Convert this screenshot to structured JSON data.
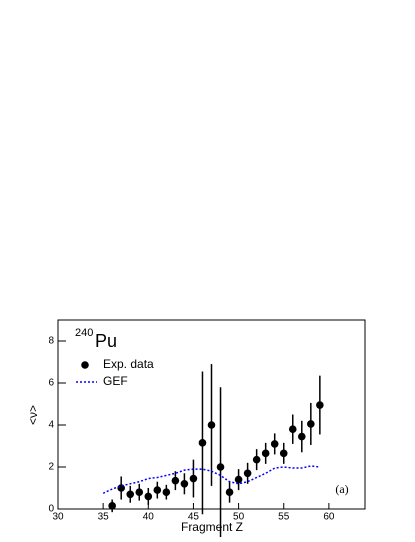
{
  "chart_data": {
    "type": "scatter",
    "title_sup": "240",
    "title": "Pu",
    "x_label": "Fragment Z",
    "y_label": "<ν>",
    "annotation": "(a)",
    "xlim": [
      30,
      64
    ],
    "ylim": [
      0,
      9
    ],
    "xticks": [
      30,
      35,
      40,
      45,
      50,
      55,
      60
    ],
    "yticks": [
      0,
      2,
      4,
      6,
      8
    ],
    "series": [
      {
        "name": "Exp. data",
        "type": "scatter",
        "color": "#000000",
        "x": [
          36,
          37,
          38,
          39,
          40,
          41,
          42,
          43,
          44,
          45,
          46,
          47,
          48,
          49,
          50,
          51,
          52,
          53,
          54,
          55,
          56,
          57,
          58,
          59
        ],
        "values": [
          0.15,
          1.0,
          0.7,
          0.8,
          0.6,
          0.9,
          0.8,
          1.35,
          1.2,
          1.45,
          3.15,
          4.0,
          2.0,
          0.8,
          1.4,
          1.7,
          2.35,
          2.65,
          3.1,
          2.65,
          3.8,
          3.45,
          4.05,
          4.95
        ],
        "errors": [
          0.3,
          0.55,
          0.4,
          0.4,
          0.4,
          0.4,
          0.35,
          0.45,
          0.5,
          0.9,
          3.4,
          2.9,
          3.8,
          0.5,
          0.5,
          0.5,
          0.5,
          0.5,
          0.5,
          0.5,
          0.7,
          0.75,
          1.0,
          1.4
        ]
      },
      {
        "name": "GEF",
        "type": "line",
        "color": "#0000ff",
        "dashed": true,
        "x": [
          35,
          36,
          37,
          38,
          39,
          40,
          41,
          42,
          43,
          44,
          45,
          46,
          47,
          48,
          49,
          50,
          51,
          52,
          53,
          54,
          55,
          56,
          57,
          58,
          59
        ],
        "values": [
          0.75,
          0.95,
          1.1,
          1.2,
          1.3,
          1.45,
          1.5,
          1.6,
          1.7,
          1.85,
          1.9,
          1.9,
          1.8,
          1.6,
          1.3,
          1.2,
          1.3,
          1.5,
          1.7,
          1.95,
          2.0,
          1.95,
          1.95,
          2.05,
          2.0
        ]
      }
    ]
  }
}
